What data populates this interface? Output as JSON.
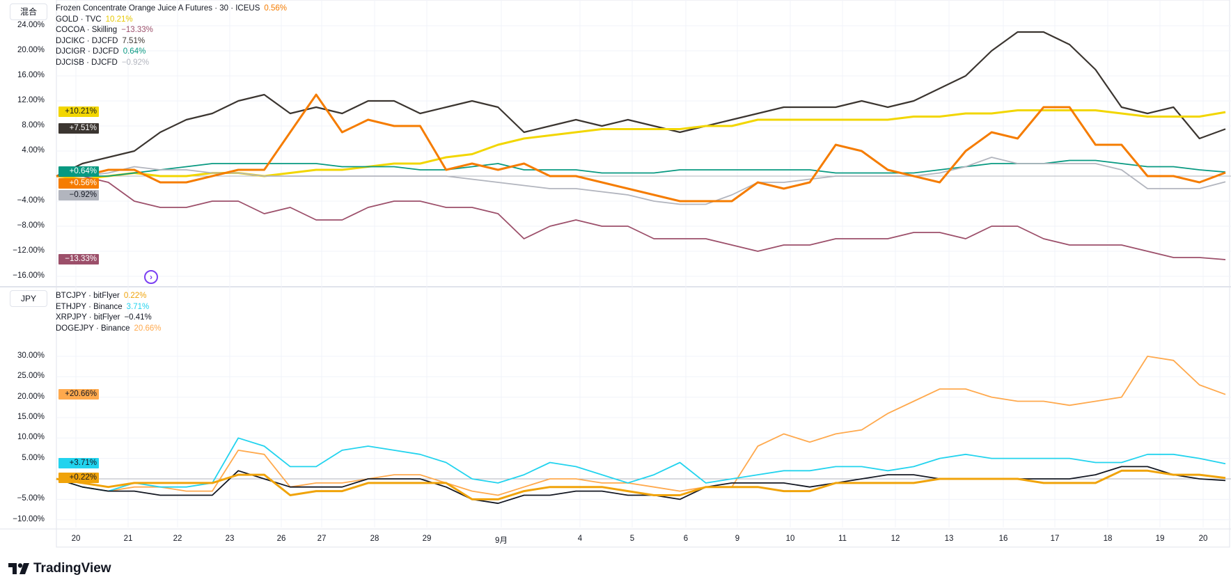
{
  "top_pane": {
    "tag": "混合",
    "legend": [
      {
        "name": "Frozen Concentrate Orange Juice A Futures · 30 · ICEUS",
        "value": "0.56%",
        "color": "#f57c00"
      },
      {
        "name": "GOLD · TVC",
        "value": "10.21%",
        "color": "#f2d600"
      },
      {
        "name": "COCOA · Skilling",
        "value": "−13.33%",
        "color": "#9c4f6a"
      },
      {
        "name": "DJCIKC · DJCFD",
        "value": "7.51%",
        "color": "#3b3530"
      },
      {
        "name": "DJCIGR · DJCFD",
        "value": "0.64%",
        "color": "#089981"
      },
      {
        "name": "DJCISB · DJCFD",
        "value": "−0.92%",
        "color": "#b2b5be"
      }
    ],
    "y_ticks": [
      "24.00%",
      "20.00%",
      "16.00%",
      "12.00%",
      "8.00%",
      "4.00%",
      "−4.00%",
      "−8.00%",
      "−12.00%",
      "−16.00%"
    ],
    "price_tags": [
      "+10.21%",
      "+7.51%",
      "+0.64%",
      "+0.56%",
      "−0.92%",
      "−13.33%"
    ]
  },
  "bottom_pane": {
    "tag": "JPY",
    "legend": [
      {
        "name": "BTCJPY · bitFlyer",
        "value": "0.22%",
        "color": "#f0a30a"
      },
      {
        "name": "ETHJPY · Binance",
        "value": "3.71%",
        "color": "#22d3ee"
      },
      {
        "name": "XRPJPY · bitFlyer",
        "value": "−0.41%",
        "color": "#131722"
      },
      {
        "name": "DOGEJPY · Binance",
        "value": "20.66%",
        "color": "#ffa94d"
      }
    ],
    "y_ticks": [
      "30.00%",
      "25.00%",
      "20.00%",
      "15.00%",
      "10.00%",
      "5.00%",
      "−5.00%",
      "−10.00%"
    ],
    "price_tags": [
      "+20.66%",
      "+3.71%",
      "+0.22%"
    ]
  },
  "x_axis": [
    "20",
    "21",
    "22",
    "23",
    "26",
    "27",
    "28",
    "29",
    "9月",
    "4",
    "5",
    "6",
    "9",
    "10",
    "11",
    "12",
    "13",
    "16",
    "17",
    "18",
    "19",
    "20"
  ],
  "branding": {
    "logo_text": "TradingView"
  },
  "chart_data": [
    {
      "type": "line",
      "title": "混合",
      "ylabel": "%",
      "ylim": [
        -17,
        26
      ],
      "series": [
        {
          "name": "DJCIKC · DJCFD",
          "color": "#3b3530",
          "values": [
            0,
            2,
            3,
            4,
            7,
            9,
            10,
            12,
            13,
            10,
            11,
            10,
            12,
            12,
            10,
            11,
            12,
            11,
            7,
            8,
            9,
            8,
            9,
            8,
            7,
            8,
            9,
            10,
            11,
            11,
            11,
            12,
            11,
            12,
            14,
            16,
            20,
            23,
            23,
            21,
            17,
            11,
            10,
            11,
            6,
            7.51
          ]
        },
        {
          "name": "GOLD · TVC",
          "color": "#f2d600",
          "values": [
            0,
            -0.5,
            0,
            0.5,
            0,
            0,
            0.5,
            0.5,
            0,
            0.5,
            1,
            1,
            1.5,
            2,
            2,
            3,
            3.5,
            5,
            6,
            6.5,
            7,
            7.5,
            7.5,
            7.5,
            7.5,
            8,
            8,
            9,
            9,
            9,
            9,
            9,
            9,
            9.5,
            9.5,
            10,
            10,
            10.5,
            10.5,
            10.5,
            10.5,
            10,
            9.5,
            9.5,
            9.5,
            10.21
          ]
        },
        {
          "name": "COCOA · Skilling",
          "color": "#9c4f6a",
          "values": [
            0,
            0,
            -1,
            -4,
            -5,
            -5,
            -4,
            -4,
            -6,
            -5,
            -7,
            -7,
            -5,
            -4,
            -4,
            -5,
            -5,
            -6,
            -10,
            -8,
            -7,
            -8,
            -8,
            -10,
            -10,
            -10,
            -11,
            -12,
            -11,
            -11,
            -10,
            -10,
            -10,
            -9,
            -9,
            -10,
            -8,
            -8,
            -10,
            -11,
            -11,
            -11,
            -12,
            -13,
            -13,
            -13.33
          ]
        },
        {
          "name": "DJCIGR · DJCFD",
          "color": "#089981",
          "values": [
            0,
            0,
            0,
            0.5,
            1,
            1.5,
            2,
            2,
            2,
            2,
            2,
            1.5,
            1.5,
            1.5,
            1,
            1,
            1.5,
            2,
            1,
            1,
            1,
            0.5,
            0.5,
            0.5,
            1,
            1,
            1,
            1,
            1,
            1,
            0.5,
            0.5,
            0.5,
            0.5,
            1,
            1.5,
            2,
            2,
            2,
            2.5,
            2.5,
            2,
            1.5,
            1.5,
            1,
            0.64
          ]
        },
        {
          "name": "DJCISB · DJCFD",
          "color": "#b2b5be",
          "values": [
            0,
            0,
            0.5,
            1.5,
            1,
            1,
            0.5,
            0.5,
            0,
            0,
            0,
            0,
            0,
            0,
            0,
            0,
            -0.5,
            -1,
            -1.5,
            -2,
            -2,
            -2.5,
            -3,
            -4,
            -4.5,
            -4.5,
            -3,
            -1,
            -1,
            -0.5,
            0,
            0,
            0,
            0,
            0.5,
            1.5,
            3,
            2,
            2,
            2,
            2,
            1,
            -2,
            -2,
            -2,
            -0.92
          ]
        },
        {
          "name": "Frozen Concentrate Orange Juice A Futures",
          "color": "#f57c00",
          "values": [
            0,
            0,
            1,
            1,
            -1,
            -1,
            0,
            1,
            1,
            7,
            13,
            7,
            9,
            8,
            8,
            1,
            2,
            1,
            2,
            0,
            0,
            -1,
            -2,
            -3,
            -4,
            -4,
            -4,
            -1,
            -2,
            -1,
            5,
            4,
            1,
            0,
            -1,
            4,
            7,
            6,
            11,
            11,
            5,
            5,
            0,
            0,
            -1,
            0.56
          ]
        }
      ]
    },
    {
      "type": "line",
      "title": "JPY",
      "ylabel": "%",
      "ylim": [
        -11,
        32
      ],
      "series": [
        {
          "name": "DOGEJPY · Binance",
          "color": "#ffa94d",
          "values": [
            0,
            -2,
            -3,
            -2,
            -2,
            -3,
            -3,
            7,
            6,
            -2,
            -1,
            -1,
            0,
            1,
            1,
            -1,
            -3,
            -4,
            -2,
            0,
            0,
            -1,
            -1,
            -2,
            -3,
            -2,
            -2,
            8,
            11,
            9,
            11,
            12,
            16,
            19,
            22,
            22,
            20,
            19,
            19,
            18,
            19,
            20,
            30,
            29,
            23,
            20.66
          ]
        },
        {
          "name": "ETHJPY · Binance",
          "color": "#22d3ee",
          "values": [
            0,
            -2,
            -3,
            -1,
            -2,
            -2,
            -1,
            10,
            8,
            3,
            3,
            7,
            8,
            7,
            6,
            4,
            0,
            -1,
            1,
            4,
            3,
            1,
            -1,
            1,
            4,
            -1,
            0,
            1,
            2,
            2,
            3,
            3,
            2,
            3,
            5,
            6,
            5,
            5,
            5,
            5,
            4,
            4,
            6,
            6,
            5,
            3.71
          ]
        },
        {
          "name": "XRPJPY · bitFlyer",
          "color": "#131722",
          "values": [
            0,
            -2,
            -3,
            -3,
            -4,
            -4,
            -4,
            2,
            0,
            -2,
            -2,
            -2,
            0,
            0,
            0,
            -2,
            -5,
            -6,
            -4,
            -4,
            -3,
            -3,
            -4,
            -4,
            -5,
            -2,
            -1,
            -1,
            -1,
            -2,
            -1,
            0,
            1,
            1,
            0,
            0,
            0,
            0,
            0,
            0,
            1,
            3,
            3,
            1,
            0,
            -0.41
          ]
        },
        {
          "name": "BTCJPY · bitFlyer",
          "color": "#f0a30a",
          "values": [
            0,
            -1,
            -2,
            -1,
            -1,
            -1,
            -1,
            1,
            1,
            -4,
            -3,
            -3,
            -1,
            -1,
            -1,
            -1,
            -5,
            -5,
            -3,
            -2,
            -2,
            -2,
            -3,
            -4,
            -4,
            -2,
            -2,
            -2,
            -3,
            -3,
            -1,
            -1,
            -1,
            -1,
            0,
            0,
            0,
            0,
            -1,
            -1,
            -1,
            2,
            2,
            1,
            1,
            0.22
          ]
        }
      ]
    }
  ]
}
